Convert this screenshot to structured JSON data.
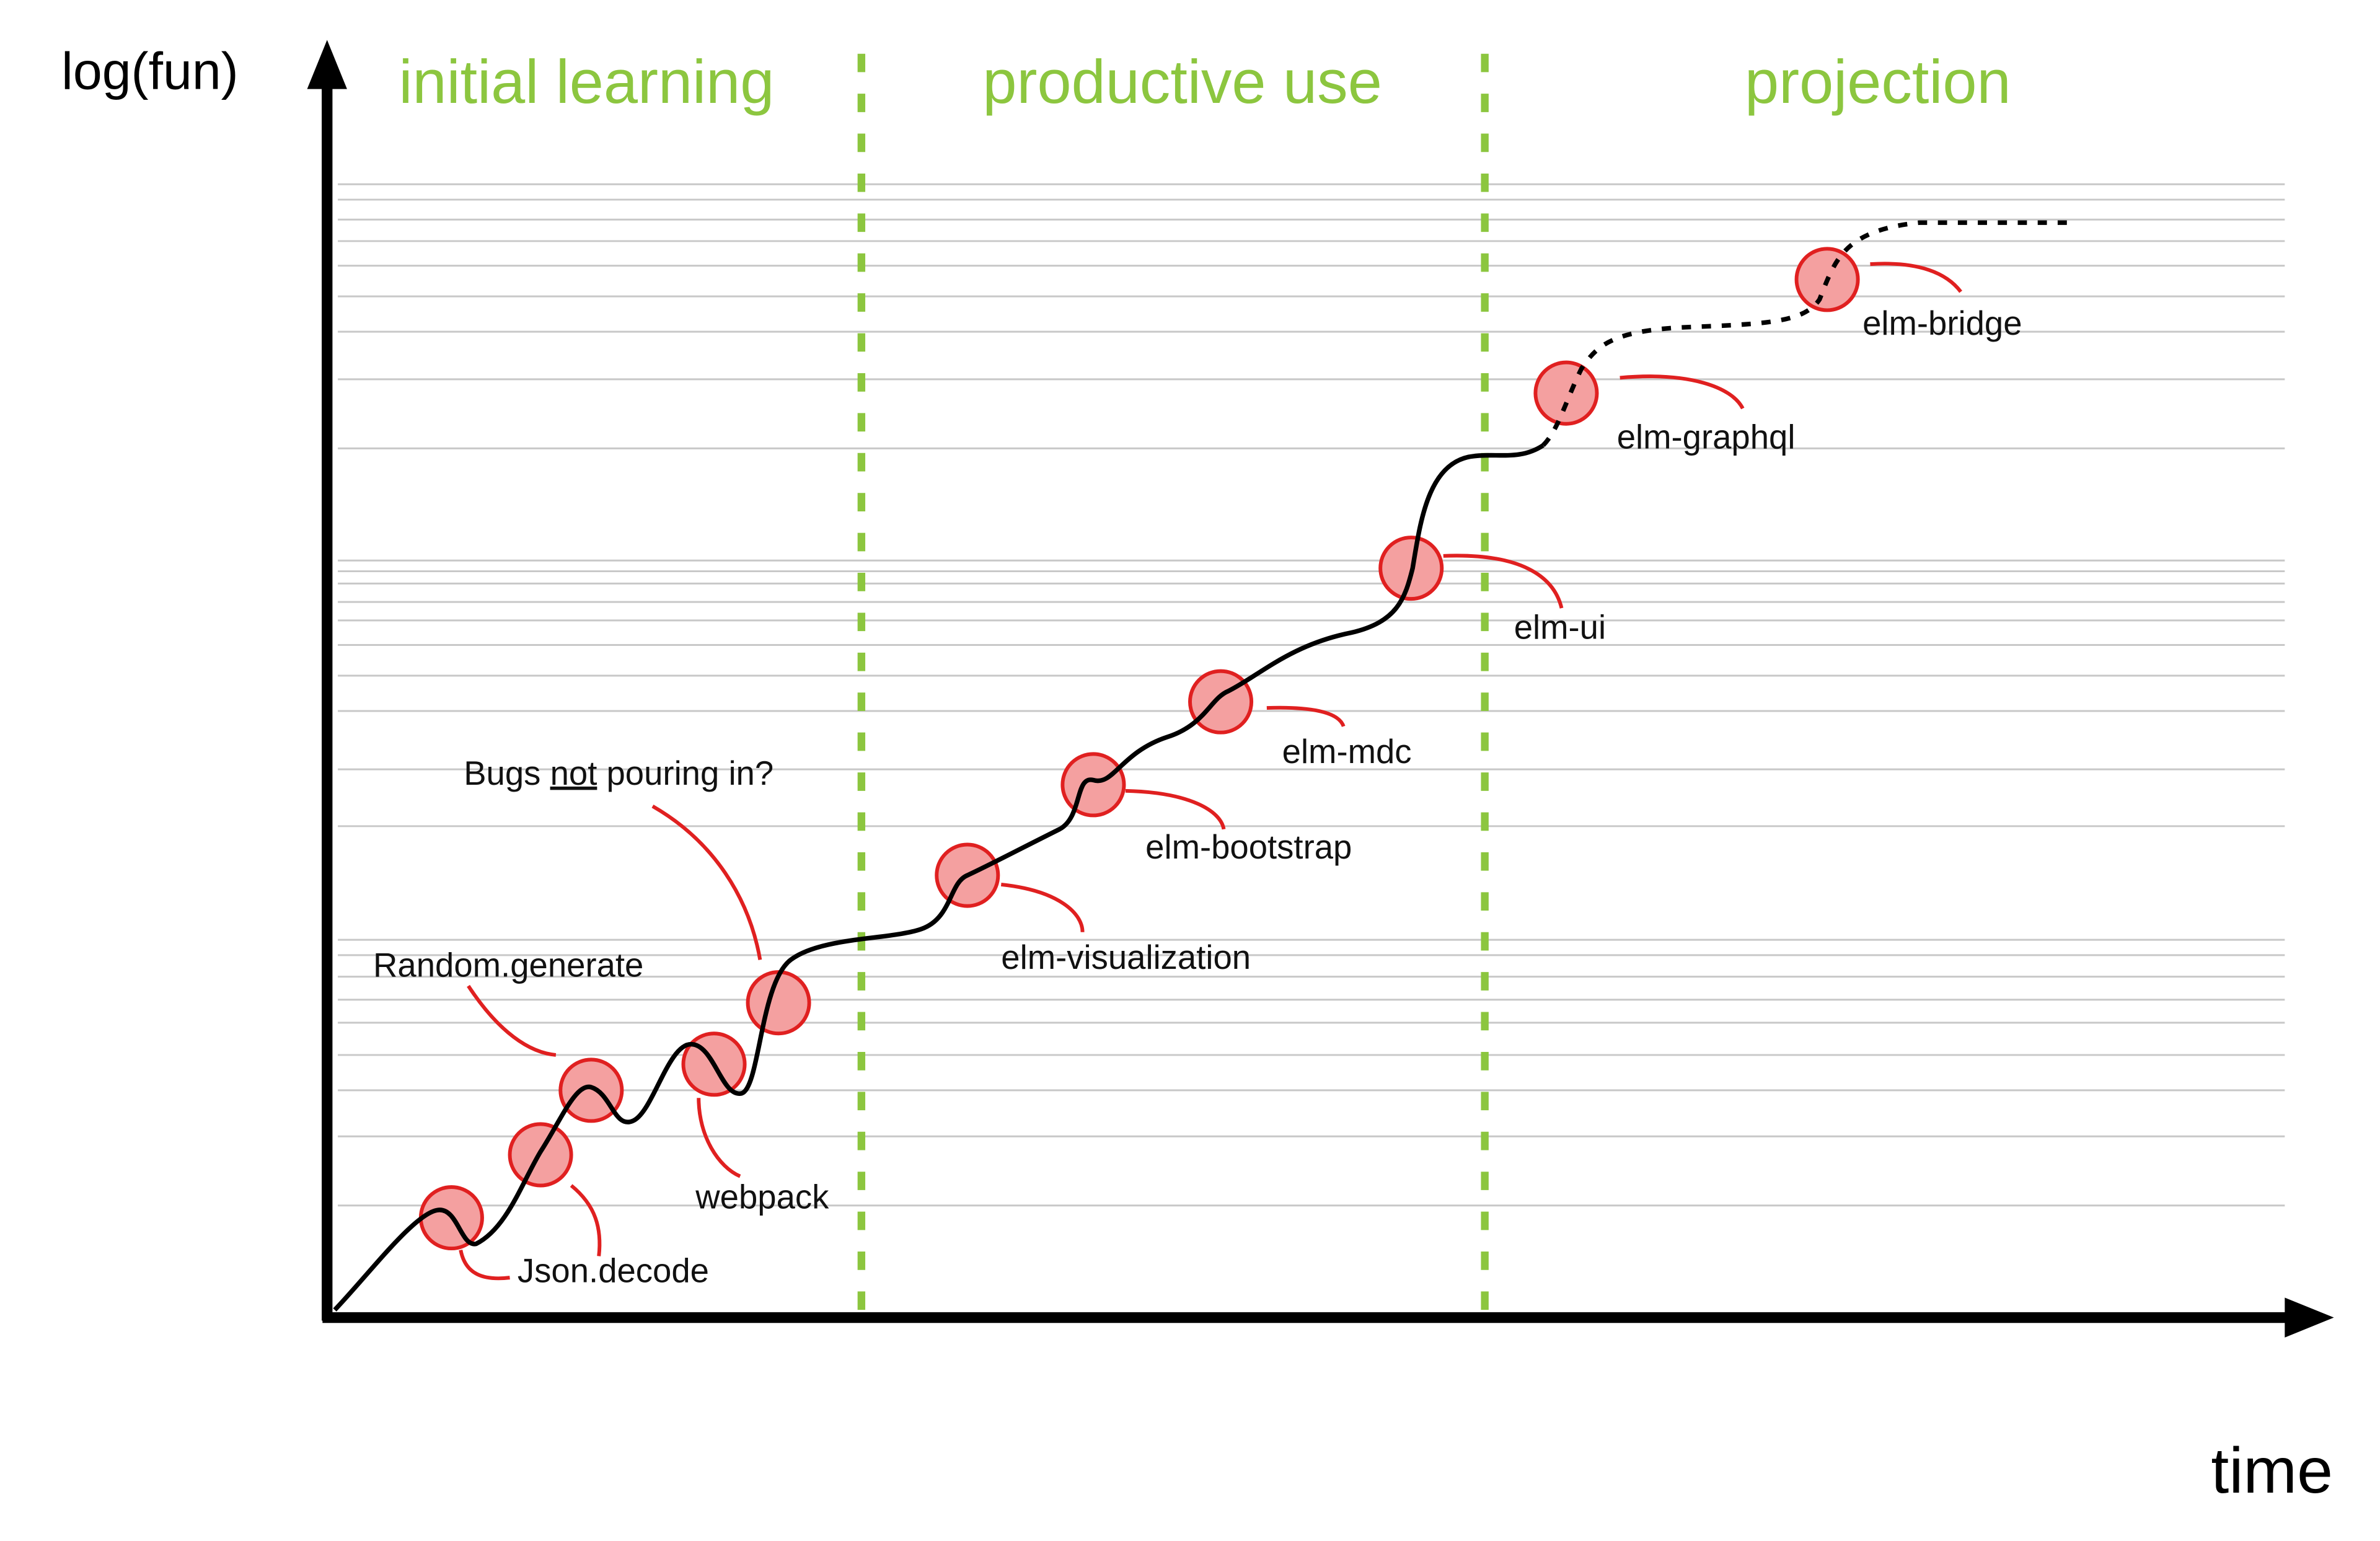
{
  "axes": {
    "y_label": "log(fun)",
    "x_label": "time"
  },
  "phases": [
    "initial learning",
    "productive use",
    "projection"
  ],
  "annotations": [
    "Json.decode",
    "Random.generate",
    "webpack",
    "elm-visualization",
    "elm-bootstrap",
    "elm-mdc",
    "elm-ui",
    "elm-graphql",
    "elm-bridge"
  ],
  "question": {
    "parts": [
      "Bugs ",
      "not",
      " pouring in?"
    ]
  }
}
